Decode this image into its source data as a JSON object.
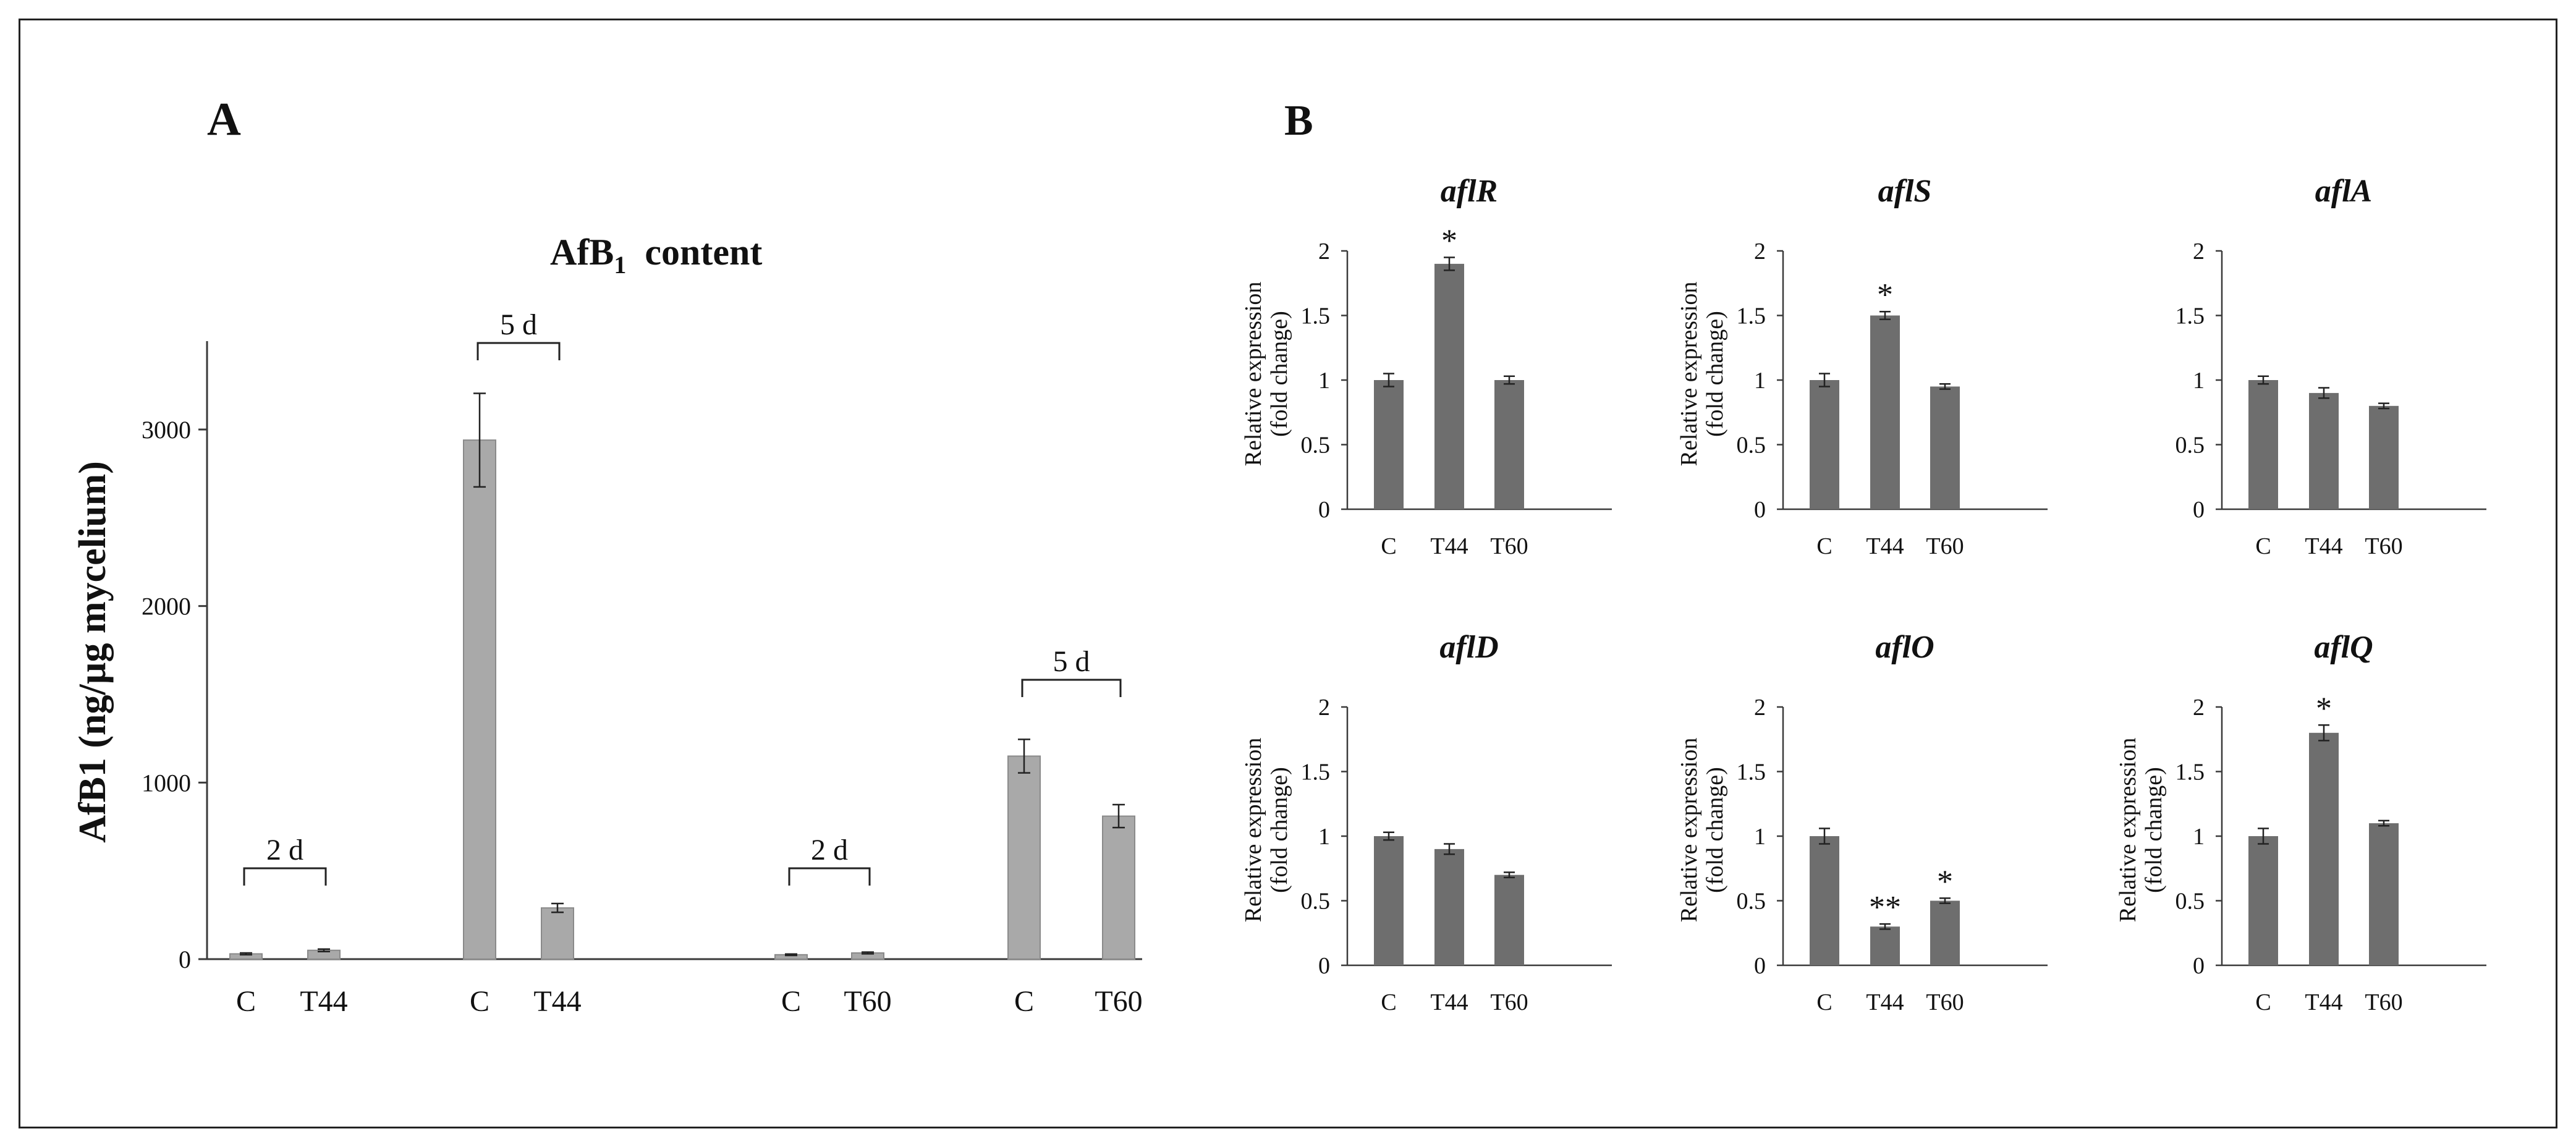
{
  "figure": {
    "panel_a_label": "A",
    "panel_b_label": "B",
    "colors": {
      "bar_a": "#a9a9a9",
      "bar_b": "#6e6e6e",
      "axis": "#3a3a3a"
    }
  },
  "chart_data": [
    {
      "id": "afb1",
      "type": "bar",
      "title_main": "AfB",
      "title_sub": "1",
      "title_rest": "  content",
      "ylabel": "AfB1 (ng/µg mycelium)",
      "xlabel": "",
      "ylim": [
        0,
        3500
      ],
      "yticks": [
        0,
        1000,
        2000,
        3000
      ],
      "categories": [
        "C",
        "T44",
        "C",
        "T44",
        "C",
        "T60",
        "C",
        "T60"
      ],
      "values": [
        30,
        50,
        2940,
        290,
        25,
        35,
        1150,
        810
      ],
      "errors": [
        5,
        7,
        265,
        25,
        4,
        5,
        95,
        65
      ],
      "groups": [
        {
          "label": "2 d",
          "from": 0,
          "to": 1
        },
        {
          "label": "5 d",
          "from": 2,
          "to": 3
        },
        {
          "label": "2 d",
          "from": 4,
          "to": 5
        },
        {
          "label": "5 d",
          "from": 6,
          "to": 7
        }
      ]
    },
    {
      "id": "aflR",
      "type": "bar",
      "title": "aflR",
      "ylabel": [
        "Relative expression",
        "(fold change)"
      ],
      "ylim": [
        0,
        2
      ],
      "yticks": [
        "0",
        "0.5",
        "1",
        "1.5",
        "2"
      ],
      "categories": [
        "C",
        "T44",
        "T60"
      ],
      "values": [
        1.0,
        1.9,
        1.0
      ],
      "errors": [
        0.05,
        0.05,
        0.03
      ],
      "marks": [
        "",
        "*",
        ""
      ]
    },
    {
      "id": "aflS",
      "type": "bar",
      "title": "aflS",
      "ylabel": [
        "Relative expression",
        "(fold change)"
      ],
      "ylim": [
        0,
        2
      ],
      "yticks": [
        "0",
        "0.5",
        "1",
        "1.5",
        "2"
      ],
      "categories": [
        "C",
        "T44",
        "T60"
      ],
      "values": [
        1.0,
        1.5,
        0.95
      ],
      "errors": [
        0.05,
        0.03,
        0.02
      ],
      "marks": [
        "",
        "*",
        ""
      ]
    },
    {
      "id": "aflA",
      "type": "bar",
      "title": "aflA",
      "ylabel": [],
      "ylim": [
        0,
        2
      ],
      "yticks": [
        "0",
        "0.5",
        "1",
        "1.5",
        "2"
      ],
      "categories": [
        "C",
        "T44",
        "T60"
      ],
      "values": [
        1.0,
        0.9,
        0.8
      ],
      "errors": [
        0.03,
        0.04,
        0.02
      ],
      "marks": [
        "",
        "",
        ""
      ]
    },
    {
      "id": "aflD",
      "type": "bar",
      "title": "aflD",
      "ylabel": [
        "Relative expression",
        "(fold change)"
      ],
      "ylim": [
        0,
        2
      ],
      "yticks": [
        "0",
        "0.5",
        "1",
        "1.5",
        "2"
      ],
      "categories": [
        "C",
        "T44",
        "T60"
      ],
      "values": [
        1.0,
        0.9,
        0.7
      ],
      "errors": [
        0.03,
        0.04,
        0.02
      ],
      "marks": [
        "",
        "",
        ""
      ]
    },
    {
      "id": "aflO",
      "type": "bar",
      "title": "aflO",
      "ylabel": [
        "Relative expression",
        "(fold change)"
      ],
      "ylim": [
        0,
        2
      ],
      "yticks": [
        "0",
        "0.5",
        "1",
        "1.5",
        "2"
      ],
      "categories": [
        "C",
        "T44",
        "T60"
      ],
      "values": [
        1.0,
        0.3,
        0.5
      ],
      "errors": [
        0.06,
        0.02,
        0.02
      ],
      "marks": [
        "",
        "**",
        "*"
      ]
    },
    {
      "id": "aflQ",
      "type": "bar",
      "title": "aflQ",
      "ylabel": [
        "Relative expression",
        "(fold change)"
      ],
      "ylim": [
        0,
        2
      ],
      "yticks": [
        "0",
        "0.5",
        "1",
        "1.5",
        "2"
      ],
      "categories": [
        "C",
        "T44",
        "T60"
      ],
      "values": [
        1.0,
        1.8,
        1.1
      ],
      "errors": [
        0.06,
        0.06,
        0.02
      ],
      "marks": [
        "",
        "*",
        ""
      ]
    }
  ]
}
